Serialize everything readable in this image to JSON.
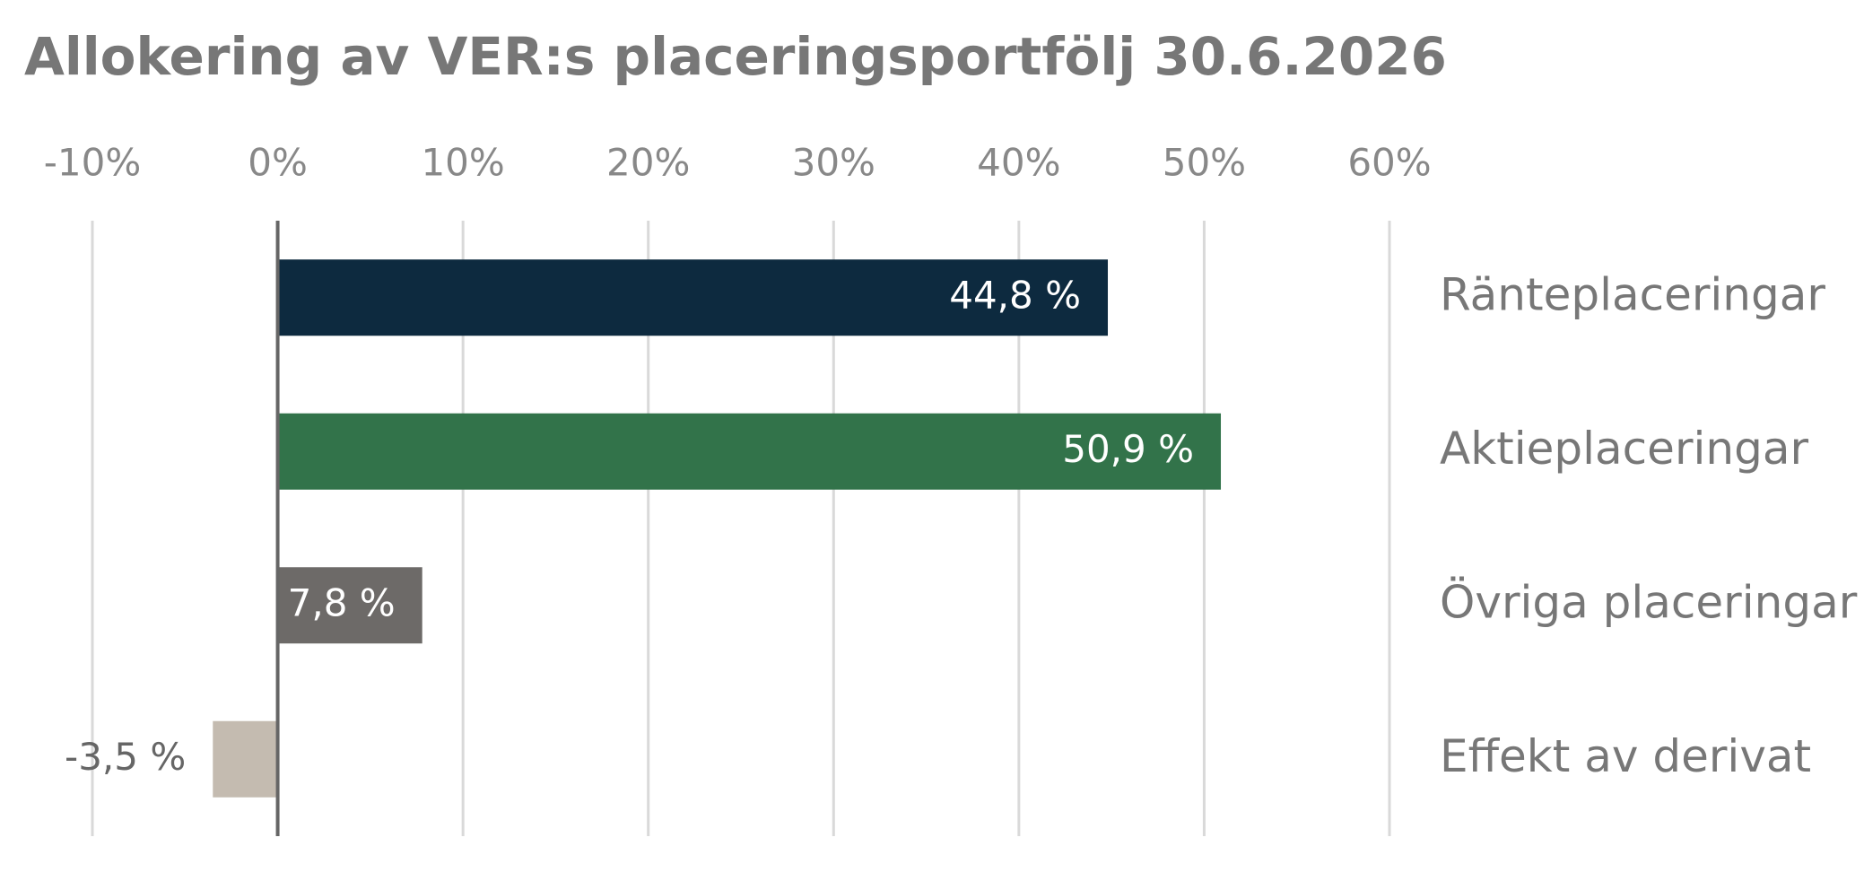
{
  "chart_data": {
    "type": "hbar",
    "title": "Allokering av VER:s placeringsportfölj 30.6.2026",
    "categories": [
      "Ränteplaceringar",
      "Aktieplaceringar",
      "Övriga placeringar",
      "Effekt av derivat"
    ],
    "values": [
      44.8,
      50.9,
      7.8,
      -3.5
    ],
    "value_labels": [
      "44,8 %",
      "50,9 %",
      "7,8 %",
      "-3,5 %"
    ],
    "colors": [
      "#0d2a3f",
      "#32734a",
      "#6d6a68",
      "#c4bbb0"
    ],
    "xlim": [
      -10,
      60
    ],
    "xticks": [
      {
        "value": -10,
        "label": "-10%"
      },
      {
        "value": 0,
        "label": "0%"
      },
      {
        "value": 10,
        "label": "10%"
      },
      {
        "value": 20,
        "label": "20%"
      },
      {
        "value": 30,
        "label": "30%"
      },
      {
        "value": 40,
        "label": "40%"
      },
      {
        "value": 50,
        "label": "50%"
      },
      {
        "value": 60,
        "label": "60%"
      }
    ],
    "grid": true
  }
}
